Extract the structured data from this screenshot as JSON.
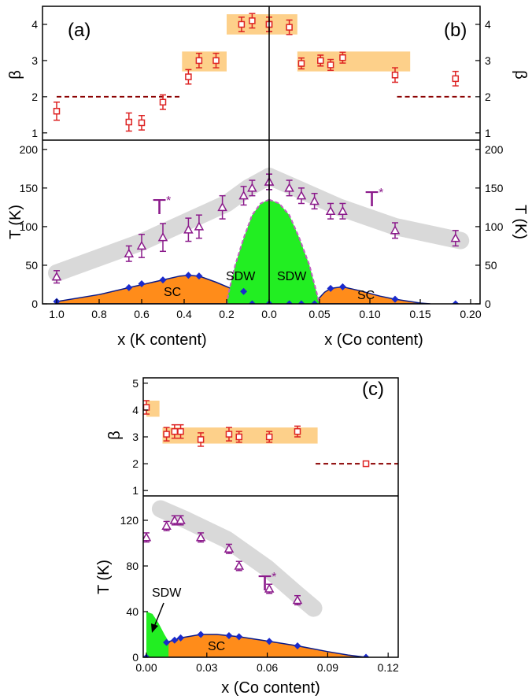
{
  "colors": {
    "beta_marker": "#dd2222",
    "tstar_marker": "#8b1a8b",
    "tc_marker": "#1a2acc",
    "sc_fill": "#ff8c1a",
    "sdw_fill": "#22ee22",
    "band_orange": "#fdd08a",
    "band_gray": "#d9d9d9",
    "dash_line": "#8b0000",
    "sdw_boundary": "#c060c0"
  },
  "chart_data": [
    {
      "panel": "(a)",
      "type": "scatter",
      "xlabel": "x (K content)",
      "beta_ylabel": "β",
      "t_ylabel": "T (K)",
      "xlim": [
        1.0,
        0.0
      ],
      "xticks": [
        "1.0",
        "0.8",
        "0.6",
        "0.4",
        "0.2",
        "0.0"
      ],
      "beta_ylim": [
        0.8,
        4.5
      ],
      "beta_yticks": [
        "1",
        "2",
        "3",
        "4"
      ],
      "t_ylim": [
        0,
        210
      ],
      "t_yticks": [
        "0",
        "50",
        "100",
        "150",
        "200"
      ],
      "beta_points": [
        {
          "x": 1.0,
          "y": 1.6,
          "err": 0.25
        },
        {
          "x": 0.66,
          "y": 1.3,
          "err": 0.25
        },
        {
          "x": 0.6,
          "y": 1.28,
          "err": 0.2
        },
        {
          "x": 0.5,
          "y": 1.85,
          "err": 0.2
        },
        {
          "x": 0.38,
          "y": 2.55,
          "err": 0.2
        },
        {
          "x": 0.33,
          "y": 3.0,
          "err": 0.2
        },
        {
          "x": 0.25,
          "y": 3.0,
          "err": 0.2
        },
        {
          "x": 0.13,
          "y": 4.0,
          "err": 0.2
        },
        {
          "x": 0.08,
          "y": 4.1,
          "err": 0.2
        },
        {
          "x": 0.0,
          "y": 4.0,
          "err": 0.2
        }
      ],
      "beta_dash": {
        "x_from": 1.0,
        "x_to": 0.42,
        "y": 2.0
      },
      "beta_bands": [
        {
          "x_from": 0.41,
          "x_to": 0.2,
          "y_from": 2.7,
          "y_to": 3.25
        },
        {
          "x_from": 0.2,
          "x_to": 0.0,
          "y_from": 3.72,
          "y_to": 4.28
        }
      ],
      "tstar_points": [
        {
          "x": 1.0,
          "y": 35,
          "err": 8
        },
        {
          "x": 0.66,
          "y": 65,
          "err": 10
        },
        {
          "x": 0.6,
          "y": 75,
          "err": 15
        },
        {
          "x": 0.5,
          "y": 86,
          "err": 18
        },
        {
          "x": 0.38,
          "y": 96,
          "err": 15
        },
        {
          "x": 0.33,
          "y": 100,
          "err": 15
        },
        {
          "x": 0.22,
          "y": 125,
          "err": 15
        },
        {
          "x": 0.12,
          "y": 140,
          "err": 12
        },
        {
          "x": 0.08,
          "y": 150,
          "err": 10
        },
        {
          "x": 0.0,
          "y": 158,
          "err": 10
        }
      ],
      "tstar_band": [
        [
          1.0,
          40
        ],
        [
          0.6,
          80
        ],
        [
          0.4,
          105
        ],
        [
          0.2,
          130
        ],
        [
          0.1,
          150
        ],
        [
          0.0,
          165
        ]
      ],
      "tc_points": [
        {
          "x": 1.0,
          "y": 3
        },
        {
          "x": 0.66,
          "y": 21
        },
        {
          "x": 0.6,
          "y": 26
        },
        {
          "x": 0.5,
          "y": 31
        },
        {
          "x": 0.38,
          "y": 37
        },
        {
          "x": 0.33,
          "y": 36
        },
        {
          "x": 0.12,
          "y": 16
        },
        {
          "x": 0.08,
          "y": 0
        },
        {
          "x": 0.0,
          "y": 0
        }
      ],
      "sc_curve": [
        [
          1.0,
          3
        ],
        [
          0.8,
          12
        ],
        [
          0.66,
          21
        ],
        [
          0.5,
          31
        ],
        [
          0.42,
          36
        ],
        [
          0.38,
          37
        ],
        [
          0.33,
          36
        ],
        [
          0.25,
          28
        ],
        [
          0.18,
          20
        ],
        [
          0.12,
          12
        ],
        [
          0.08,
          3
        ],
        [
          0.05,
          0
        ],
        [
          0.0,
          0
        ]
      ],
      "sdw_curve": [
        [
          0.0,
          135
        ],
        [
          0.04,
          130
        ],
        [
          0.08,
          115
        ],
        [
          0.12,
          85
        ],
        [
          0.16,
          50
        ],
        [
          0.19,
          15
        ],
        [
          0.2,
          0
        ]
      ],
      "tstar_label": "T",
      "tstar_sup": "*",
      "sc_label": "SC",
      "sdw_label": "SDW"
    },
    {
      "panel": "(b)",
      "type": "scatter",
      "xlabel": "x (Co content)",
      "beta_ylabel": "β",
      "t_ylabel": "T (K)",
      "xlim": [
        0.0,
        0.2
      ],
      "xticks": [
        "0.05",
        "0.10",
        "0.15",
        "0.20"
      ],
      "beta_ylim": [
        0.8,
        4.5
      ],
      "beta_yticks": [
        "1",
        "2",
        "3",
        "4"
      ],
      "t_ylim": [
        0,
        210
      ],
      "t_yticks": [
        "0",
        "50",
        "100",
        "150",
        "200"
      ],
      "beta_points": [
        {
          "x": 0.0,
          "y": 4.0,
          "err": 0.2
        },
        {
          "x": 0.02,
          "y": 3.92,
          "err": 0.2
        },
        {
          "x": 0.032,
          "y": 2.92,
          "err": 0.15
        },
        {
          "x": 0.051,
          "y": 3.0,
          "err": 0.15
        },
        {
          "x": 0.061,
          "y": 2.88,
          "err": 0.15
        },
        {
          "x": 0.073,
          "y": 3.08,
          "err": 0.15
        },
        {
          "x": 0.125,
          "y": 2.6,
          "err": 0.2
        },
        {
          "x": 0.185,
          "y": 2.5,
          "err": 0.2
        }
      ],
      "beta_dash": {
        "x_from": 0.127,
        "x_to": 0.2,
        "y": 2.0
      },
      "beta_bands": [
        {
          "x_from": 0.0,
          "x_to": 0.028,
          "y_from": 3.72,
          "y_to": 4.28
        },
        {
          "x_from": 0.028,
          "x_to": 0.14,
          "y_from": 2.7,
          "y_to": 3.25
        }
      ],
      "tstar_points": [
        {
          "x": 0.0,
          "y": 158,
          "err": 10
        },
        {
          "x": 0.02,
          "y": 150,
          "err": 10
        },
        {
          "x": 0.032,
          "y": 140,
          "err": 10
        },
        {
          "x": 0.045,
          "y": 133,
          "err": 10
        },
        {
          "x": 0.061,
          "y": 120,
          "err": 10
        },
        {
          "x": 0.073,
          "y": 120,
          "err": 10
        },
        {
          "x": 0.125,
          "y": 95,
          "err": 10
        },
        {
          "x": 0.185,
          "y": 85,
          "err": 10
        }
      ],
      "tstar_band": [
        [
          0.0,
          165
        ],
        [
          0.03,
          148
        ],
        [
          0.07,
          125
        ],
        [
          0.125,
          100
        ],
        [
          0.19,
          82
        ]
      ],
      "tc_points": [
        {
          "x": 0.0,
          "y": 0
        },
        {
          "x": 0.02,
          "y": 0
        },
        {
          "x": 0.032,
          "y": 0
        },
        {
          "x": 0.045,
          "y": 0
        },
        {
          "x": 0.061,
          "y": 20
        },
        {
          "x": 0.073,
          "y": 22
        },
        {
          "x": 0.125,
          "y": 6
        },
        {
          "x": 0.185,
          "y": 0
        }
      ],
      "sc_curve": [
        [
          0.045,
          0
        ],
        [
          0.05,
          8
        ],
        [
          0.055,
          15
        ],
        [
          0.061,
          20
        ],
        [
          0.073,
          22
        ],
        [
          0.09,
          17
        ],
        [
          0.11,
          10
        ],
        [
          0.125,
          6
        ],
        [
          0.15,
          1
        ],
        [
          0.16,
          0
        ]
      ],
      "sdw_curve": [
        [
          0.0,
          135
        ],
        [
          0.01,
          130
        ],
        [
          0.02,
          115
        ],
        [
          0.03,
          85
        ],
        [
          0.04,
          50
        ],
        [
          0.047,
          15
        ],
        [
          0.05,
          0
        ]
      ],
      "tstar_label": "T",
      "tstar_sup": "*",
      "sc_label": "SC",
      "sdw_label": "SDW"
    },
    {
      "panel": "(c)",
      "type": "scatter",
      "xlabel": "x (Co content)",
      "beta_ylabel": "β",
      "t_ylabel": "T (K)",
      "xlim": [
        0.0,
        0.125
      ],
      "xticks": [
        "0.00",
        "0.03",
        "0.06",
        "0.09",
        "0.12"
      ],
      "beta_ylim": [
        0.8,
        5.2
      ],
      "beta_yticks": [
        "1",
        "2",
        "3",
        "4",
        "5"
      ],
      "t_ylim": [
        0,
        140
      ],
      "t_yticks": [
        "0",
        "40",
        "80",
        "120"
      ],
      "beta_points": [
        {
          "x": 0.0,
          "y": 4.1,
          "err": 0.25
        },
        {
          "x": 0.01,
          "y": 3.1,
          "err": 0.25
        },
        {
          "x": 0.014,
          "y": 3.2,
          "err": 0.25
        },
        {
          "x": 0.017,
          "y": 3.2,
          "err": 0.25
        },
        {
          "x": 0.027,
          "y": 2.9,
          "err": 0.25
        },
        {
          "x": 0.041,
          "y": 3.1,
          "err": 0.25
        },
        {
          "x": 0.046,
          "y": 3.0,
          "err": 0.2
        },
        {
          "x": 0.061,
          "y": 3.0,
          "err": 0.2
        },
        {
          "x": 0.075,
          "y": 3.2,
          "err": 0.2
        },
        {
          "x": 0.109,
          "y": 2.0,
          "err": 0.05
        }
      ],
      "beta_dash": {
        "x_from": 0.084,
        "x_to": 0.125,
        "y": 2.0
      },
      "beta_bands": [
        {
          "x_from": 0.0,
          "x_to": 0.0065,
          "y_from": 3.75,
          "y_to": 4.35
        },
        {
          "x_from": 0.008,
          "x_to": 0.085,
          "y_from": 2.75,
          "y_to": 3.35
        }
      ],
      "tstar_points": [
        {
          "x": 0.0,
          "y": 105,
          "err": 4
        },
        {
          "x": 0.01,
          "y": 115,
          "err": 4
        },
        {
          "x": 0.014,
          "y": 120,
          "err": 4
        },
        {
          "x": 0.017,
          "y": 120,
          "err": 4
        },
        {
          "x": 0.027,
          "y": 105,
          "err": 4
        },
        {
          "x": 0.041,
          "y": 95,
          "err": 4
        },
        {
          "x": 0.046,
          "y": 80,
          "err": 4
        },
        {
          "x": 0.061,
          "y": 60,
          "err": 4
        },
        {
          "x": 0.075,
          "y": 50,
          "err": 4
        }
      ],
      "tstar_band": [
        [
          0.007,
          130
        ],
        [
          0.02,
          120
        ],
        [
          0.04,
          103
        ],
        [
          0.06,
          78
        ],
        [
          0.075,
          55
        ],
        [
          0.083,
          43
        ]
      ],
      "tc_points": [
        {
          "x": 0.0,
          "y": 0
        },
        {
          "x": 0.01,
          "y": 13
        },
        {
          "x": 0.014,
          "y": 15
        },
        {
          "x": 0.017,
          "y": 17
        },
        {
          "x": 0.027,
          "y": 20
        },
        {
          "x": 0.041,
          "y": 19
        },
        {
          "x": 0.046,
          "y": 18
        },
        {
          "x": 0.061,
          "y": 14
        },
        {
          "x": 0.075,
          "y": 10
        },
        {
          "x": 0.109,
          "y": 0
        }
      ],
      "sc_curve": [
        [
          0.0,
          0
        ],
        [
          0.004,
          7
        ],
        [
          0.01,
          13
        ],
        [
          0.017,
          17
        ],
        [
          0.027,
          20
        ],
        [
          0.035,
          20
        ],
        [
          0.046,
          18
        ],
        [
          0.061,
          14
        ],
        [
          0.075,
          10
        ],
        [
          0.09,
          5
        ],
        [
          0.1,
          2
        ],
        [
          0.109,
          0
        ]
      ],
      "sdw_curve": [
        [
          0.0,
          40
        ],
        [
          0.003,
          38
        ],
        [
          0.006,
          30
        ],
        [
          0.009,
          20
        ],
        [
          0.011,
          14
        ]
      ],
      "tstar_label": "T",
      "tstar_sup": "*",
      "sc_label": "SC",
      "sdw_label": "SDW"
    }
  ]
}
